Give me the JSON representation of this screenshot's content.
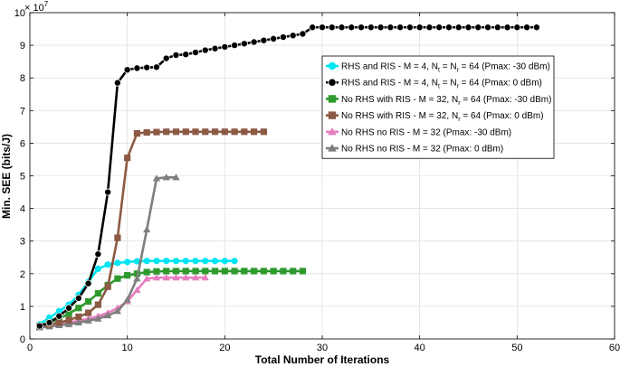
{
  "chart_data": {
    "type": "line",
    "xlabel": "Total Number of Iterations",
    "ylabel": "Min. SEE (bits/J)",
    "exponent_label": {
      "base": "× 10",
      "power": "7"
    },
    "xlim": [
      0,
      60
    ],
    "ylim": [
      0,
      10
    ],
    "x_ticks": [
      0,
      10,
      20,
      30,
      40,
      50,
      60
    ],
    "y_ticks": [
      0,
      1,
      2,
      3,
      4,
      5,
      6,
      7,
      8,
      9,
      10
    ],
    "grid": true,
    "legend_position": "upper-right",
    "series": [
      {
        "name": "RHS and RIS - M = 4, N_t = N_r = 64 (Pmax: -30 dBm)",
        "legend_parts": [
          [
            "RHS and RIS - M = 4, N",
            ""
          ],
          [
            "t",
            "sub"
          ],
          [
            " = N",
            ""
          ],
          [
            "r",
            "sub"
          ],
          [
            " = 64 (Pmax: -30 dBm)",
            ""
          ]
        ],
        "color": "#00e5f2",
        "marker": "circle",
        "x": [
          1,
          2,
          3,
          4,
          5,
          6,
          7,
          8,
          9,
          10,
          11,
          12,
          13,
          14,
          15,
          16,
          17,
          18,
          19,
          20,
          21
        ],
        "y": [
          0.45,
          0.65,
          0.85,
          1.05,
          1.35,
          1.75,
          2.15,
          2.28,
          2.33,
          2.36,
          2.38,
          2.39,
          2.39,
          2.39,
          2.39,
          2.39,
          2.39,
          2.39,
          2.39,
          2.39,
          2.39
        ]
      },
      {
        "name": "RHS and RIS - M = 4, N_t = N_r = 64 (Pmax: 0 dBm)",
        "legend_parts": [
          [
            "RHS and RIS - M = 4, N",
            ""
          ],
          [
            "t",
            "sub"
          ],
          [
            " = N",
            ""
          ],
          [
            "r",
            "sub"
          ],
          [
            " = 64 (Pmax: 0 dBm)",
            ""
          ]
        ],
        "color": "#000000",
        "marker": "circle",
        "x": [
          1,
          2,
          3,
          4,
          5,
          6,
          7,
          8,
          9,
          10,
          11,
          12,
          13,
          14,
          15,
          16,
          17,
          18,
          19,
          20,
          21,
          22,
          23,
          24,
          25,
          26,
          27,
          28,
          29,
          30,
          31,
          32,
          33,
          34,
          35,
          36,
          37,
          38,
          39,
          40,
          41,
          42,
          43,
          44,
          45,
          46,
          47,
          48,
          49,
          50,
          51,
          52
        ],
        "y": [
          0.4,
          0.5,
          0.7,
          0.95,
          1.25,
          1.7,
          2.6,
          4.5,
          7.85,
          8.25,
          8.3,
          8.32,
          8.33,
          8.6,
          8.7,
          8.72,
          8.78,
          8.85,
          8.9,
          8.95,
          9.0,
          9.05,
          9.1,
          9.15,
          9.2,
          9.25,
          9.3,
          9.35,
          9.55,
          9.55,
          9.55,
          9.55,
          9.55,
          9.55,
          9.55,
          9.55,
          9.55,
          9.55,
          9.55,
          9.55,
          9.55,
          9.55,
          9.55,
          9.55,
          9.55,
          9.55,
          9.55,
          9.55,
          9.55,
          9.55,
          9.55,
          9.55
        ]
      },
      {
        "name": "No RHS with RIS - M = 32, N_r = 64 (Pmax: -30 dBm)",
        "legend_parts": [
          [
            "No RHS with RIS - M = 32, N",
            ""
          ],
          [
            "r",
            "sub"
          ],
          [
            " = 64 (Pmax: -30 dBm)",
            ""
          ]
        ],
        "color": "#2e9a2e",
        "marker": "square",
        "x": [
          1,
          2,
          3,
          4,
          5,
          6,
          7,
          8,
          9,
          10,
          11,
          12,
          13,
          14,
          15,
          16,
          17,
          18,
          19,
          20,
          21,
          22,
          23,
          24,
          25,
          26,
          27,
          28
        ],
        "y": [
          0.4,
          0.5,
          0.62,
          0.78,
          0.95,
          1.15,
          1.4,
          1.65,
          1.85,
          1.95,
          2.0,
          2.05,
          2.07,
          2.08,
          2.08,
          2.08,
          2.08,
          2.08,
          2.08,
          2.08,
          2.08,
          2.08,
          2.08,
          2.08,
          2.08,
          2.08,
          2.08,
          2.08
        ]
      },
      {
        "name": "No RHS with RIS - M = 32, N_r = 64 (Pmax: 0 dBm)",
        "legend_parts": [
          [
            "No RHS with RIS - M = 32, N",
            ""
          ],
          [
            "r",
            "sub"
          ],
          [
            " = 64 (Pmax: 0 dBm)",
            ""
          ]
        ],
        "color": "#8c5a44",
        "marker": "square",
        "x": [
          1,
          2,
          3,
          4,
          5,
          6,
          7,
          8,
          9,
          10,
          11,
          12,
          13,
          14,
          15,
          16,
          17,
          18,
          19,
          20,
          21,
          22,
          23,
          24
        ],
        "y": [
          0.4,
          0.45,
          0.5,
          0.58,
          0.68,
          0.8,
          1.05,
          1.6,
          3.1,
          5.55,
          6.3,
          6.33,
          6.34,
          6.35,
          6.35,
          6.35,
          6.35,
          6.35,
          6.35,
          6.35,
          6.35,
          6.35,
          6.35,
          6.35
        ]
      },
      {
        "name": "No RHS no RIS - M = 32 (Pmax: -30 dBm)",
        "legend_parts": [
          [
            "No RHS no RIS - M = 32 (Pmax: -30 dBm)",
            ""
          ]
        ],
        "color": "#e67ec0",
        "marker": "triangle",
        "x": [
          1,
          2,
          3,
          4,
          5,
          6,
          7,
          8,
          9,
          10,
          11,
          12,
          13,
          14,
          15,
          16,
          17,
          18
        ],
        "y": [
          0.35,
          0.4,
          0.45,
          0.5,
          0.56,
          0.62,
          0.7,
          0.8,
          0.95,
          1.15,
          1.5,
          1.85,
          1.88,
          1.88,
          1.88,
          1.88,
          1.88,
          1.88
        ]
      },
      {
        "name": "No RHS no RIS - M = 32 (Pmax: 0 dBm)",
        "legend_parts": [
          [
            "No RHS no RIS - M = 32 (Pmax: 0 dBm)",
            ""
          ]
        ],
        "color": "#7f7f7f",
        "marker": "triangle",
        "x": [
          1,
          2,
          3,
          4,
          5,
          6,
          7,
          8,
          9,
          10,
          11,
          12,
          13,
          14,
          15
        ],
        "y": [
          0.35,
          0.38,
          0.42,
          0.45,
          0.5,
          0.56,
          0.62,
          0.72,
          0.85,
          1.2,
          1.85,
          3.35,
          4.92,
          4.95,
          4.95
        ]
      }
    ]
  }
}
